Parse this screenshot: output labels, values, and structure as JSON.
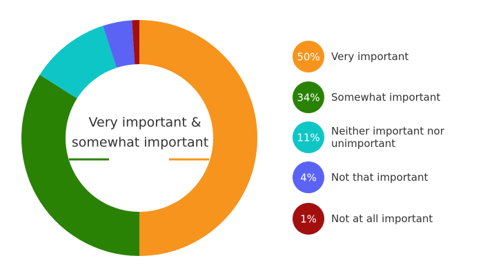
{
  "chart_data": {
    "type": "pie",
    "categories": [
      "Very important",
      "Somewhat important",
      "Neither important  nor unimportant",
      "Not that important",
      "Not at all important"
    ],
    "values": [
      50,
      34,
      11,
      4,
      1
    ],
    "value_labels": [
      "50%",
      "34%",
      "11%",
      "4%",
      "1%"
    ],
    "colors": [
      "#f7941d",
      "#2a8205",
      "#0fc6c6",
      "#5b63f5",
      "#a30f0f"
    ],
    "center_text": [
      "Very important &",
      "somewhat important"
    ]
  }
}
